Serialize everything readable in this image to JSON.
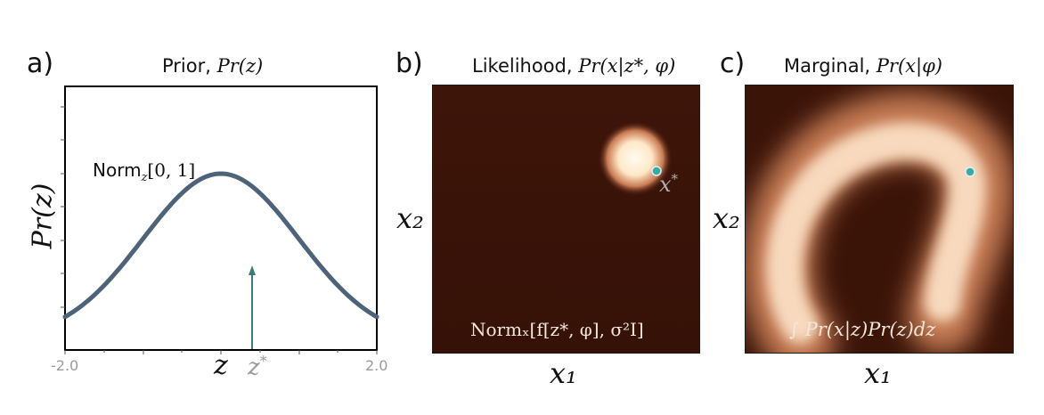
{
  "panel_a": {
    "letter": "a)",
    "title_word": "Prior,",
    "title_math": "Pr(z)",
    "ylabel": "Pr(z)",
    "curve_label_text": "Norm",
    "curve_label_sub": "z",
    "curve_label_args": "[0, 1]",
    "xtick_left": "-2.0",
    "xtick_right": "2.0",
    "xlabel": "z",
    "zstar_label": "z",
    "zstar_sup": "*",
    "colors": {
      "curve": "#4d6378",
      "arrow": "#3d7a75",
      "tick_text": "#9a9a9a"
    }
  },
  "panel_b": {
    "letter": "b)",
    "title_word": "Likelihood,",
    "title_math": "Pr(x|z*, φ)",
    "xlabel": "x₁",
    "ylabel": "x₂",
    "point_label": "x",
    "point_sup": "*",
    "formula": "Normₓ[f[z*, φ], σ²I]",
    "colors": {
      "background": "#3b1408",
      "blob": "#fff0d8",
      "point": "#3aa9a6"
    }
  },
  "panel_c": {
    "letter": "c)",
    "title_word": "Marginal,",
    "title_math": "Pr(x|φ)",
    "xlabel": "x₁",
    "ylabel": "x₂",
    "formula": "∫ Pr(x|z)Pr(z)dz",
    "colors": {
      "background": "#3b1408",
      "arc": "#f6d2b4",
      "point": "#3aa9a6"
    }
  }
}
